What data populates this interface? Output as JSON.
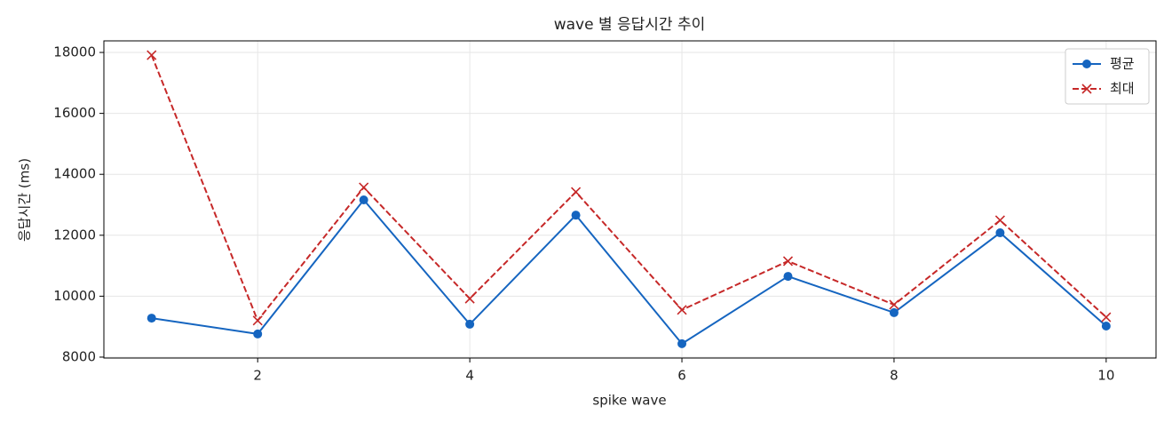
{
  "chart_data": {
    "type": "line",
    "title": "wave 별 응답시간 추이",
    "xlabel": "spike wave",
    "ylabel": "응답시간 (ms)",
    "x": [
      1,
      2,
      3,
      4,
      5,
      6,
      7,
      8,
      9,
      10
    ],
    "series": [
      {
        "name": "평균",
        "color": "#1565c0",
        "marker": "o",
        "dash": "solid",
        "values": [
          9280,
          8760,
          13160,
          9080,
          12660,
          8440,
          10650,
          9460,
          12080,
          9020
        ]
      },
      {
        "name": "최대",
        "color": "#c62828",
        "marker": "x",
        "dash": "dashed",
        "values": [
          17910,
          9200,
          13570,
          9920,
          13420,
          9550,
          11150,
          9720,
          12490,
          9310
        ]
      }
    ],
    "xlim": [
      0.55,
      10.47
    ],
    "ylim": [
      7970,
      18380
    ],
    "xticks": [
      2,
      4,
      6,
      8,
      10
    ],
    "yticks": [
      8000,
      10000,
      12000,
      14000,
      16000,
      18000
    ],
    "grid": true,
    "legend": "upper right"
  }
}
